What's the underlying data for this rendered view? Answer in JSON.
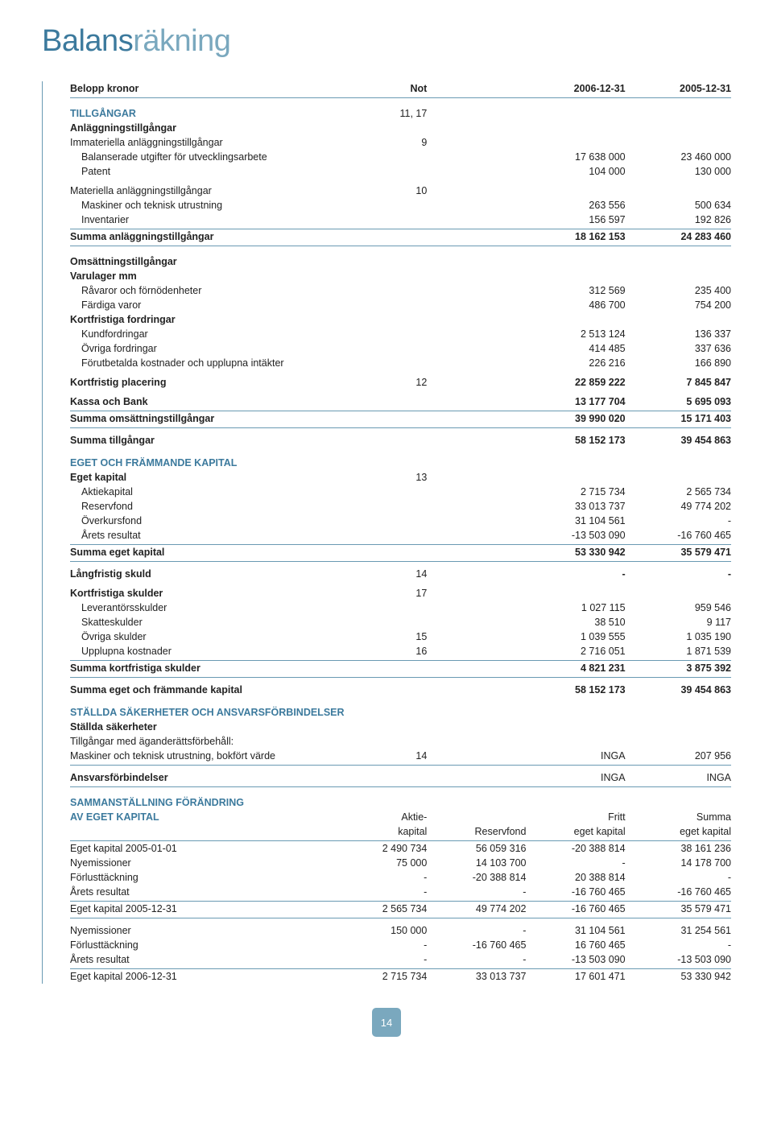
{
  "title_part1": "Balans",
  "title_part2": "räkning",
  "columns": {
    "label": "Belopp kronor",
    "not": "Not",
    "y1": "2006-12-31",
    "y2": "2005-12-31"
  },
  "tillgangar": {
    "heading": "TILLGÅNGAR",
    "not": "11, 17"
  },
  "anlaggn": {
    "heading": "Anläggningstillgångar",
    "rows": [
      {
        "label": "Immateriella anläggningstillgångar",
        "not": "9",
        "v1": "",
        "v2": ""
      },
      {
        "label": "Balanserade utgifter för utvecklingsarbete",
        "not": "",
        "v1": "17 638 000",
        "v2": "23 460 000"
      },
      {
        "label": "Patent",
        "not": "",
        "v1": "104 000",
        "v2": "130 000"
      }
    ],
    "mat_heading": "Materiella anläggningstillgångar",
    "mat_not": "10",
    "mat_rows": [
      {
        "label": "Maskiner och teknisk utrustning",
        "v1": "263 556",
        "v2": "500 634"
      },
      {
        "label": "Inventarier",
        "v1": "156 597",
        "v2": "192 826"
      }
    ],
    "sum": {
      "label": "Summa anläggningstillgångar",
      "v1": "18 162 153",
      "v2": "24 283 460"
    }
  },
  "oms": {
    "heading": "Omsättningstillgångar",
    "varulager": {
      "heading": "Varulager mm",
      "rows": [
        {
          "label": "Råvaror och förnödenheter",
          "v1": "312 569",
          "v2": "235 400"
        },
        {
          "label": "Färdiga varor",
          "v1": "486 700",
          "v2": "754 200"
        }
      ]
    },
    "kf": {
      "heading": "Kortfristiga fordringar",
      "rows": [
        {
          "label": "Kundfordringar",
          "v1": "2 513 124",
          "v2": "136 337"
        },
        {
          "label": "Övriga fordringar",
          "v1": "414 485",
          "v2": "337 636"
        },
        {
          "label": "Förutbetalda kostnader och upplupna intäkter",
          "v1": "226 216",
          "v2": "166 890"
        }
      ]
    },
    "kp": {
      "label": "Kortfristig placering",
      "not": "12",
      "v1": "22 859 222",
      "v2": "7 845 847"
    },
    "kb": {
      "label": "Kassa och Bank",
      "v1": "13 177 704",
      "v2": "5 695 093"
    },
    "sum": {
      "label": "Summa omsättningstillgångar",
      "v1": "39 990 020",
      "v2": "15 171 403"
    },
    "total": {
      "label": "Summa tillgångar",
      "v1": "58 152 173",
      "v2": "39 454 863"
    }
  },
  "eget_heading": "EGET OCH FRÄMMANDE KAPITAL",
  "ek": {
    "heading": "Eget kapital",
    "not": "13",
    "rows": [
      {
        "label": "Aktiekapital",
        "v1": "2 715 734",
        "v2": "2 565 734"
      },
      {
        "label": "Reservfond",
        "v1": "33 013 737",
        "v2": "49 774 202"
      },
      {
        "label": "Överkursfond",
        "v1": "31 104 561",
        "v2": "-"
      },
      {
        "label": "Årets resultat",
        "v1": "-13 503 090",
        "v2": "-16 760 465"
      }
    ],
    "sum": {
      "label": "Summa eget kapital",
      "v1": "53 330 942",
      "v2": "35 579 471"
    }
  },
  "lang": {
    "label": "Långfristig skuld",
    "not": "14",
    "v1": "-",
    "v2": "-"
  },
  "ks": {
    "heading": "Kortfristiga skulder",
    "not": "17",
    "rows": [
      {
        "label": "Leverantörsskulder",
        "not": "",
        "v1": "1 027 115",
        "v2": "959 546"
      },
      {
        "label": "Skatteskulder",
        "not": "",
        "v1": "38 510",
        "v2": "9 117"
      },
      {
        "label": "Övriga skulder",
        "not": "15",
        "v1": "1 039 555",
        "v2": "1 035 190"
      },
      {
        "label": "Upplupna kostnader",
        "not": "16",
        "v1": "2 716 051",
        "v2": "1 871 539"
      }
    ],
    "sum": {
      "label": "Summa kortfristiga skulder",
      "v1": "4 821 231",
      "v2": "3 875 392"
    }
  },
  "summa_ek": {
    "label": "Summa eget och främmande kapital",
    "v1": "58 152 173",
    "v2": "39 454 863"
  },
  "stallda": {
    "heading": "STÄLLDA SÄKERHETER OCH ANSVARSFÖRBINDELSER",
    "sub": "Ställda säkerheter",
    "line1": "Tillgångar med äganderättsförbehåll:",
    "row": {
      "label": "Maskiner och teknisk utrustning, bokfört värde",
      "not": "14",
      "v1": "INGA",
      "v2": "207 956"
    },
    "ansvar": {
      "label": "Ansvarsförbindelser",
      "v1": "INGA",
      "v2": "INGA"
    }
  },
  "eq": {
    "heading1": "SAMMANSTÄLLNING FÖRÄNDRING",
    "heading2": "AV EGET KAPITAL",
    "cols": {
      "c1a": "Aktie-",
      "c1b": "kapital",
      "c2": "Reservfond",
      "c3a": "Fritt",
      "c3b": "eget kapital",
      "c4a": "Summa",
      "c4b": "eget kapital"
    },
    "block1": [
      {
        "label": "Eget kapital 2005-01-01",
        "a": "2 490 734",
        "b": "56 059 316",
        "c": "-20 388 814",
        "d": "38 161 236"
      },
      {
        "label": "Nyemissioner",
        "a": "75 000",
        "b": "14 103 700",
        "c": "-",
        "d": "14 178 700"
      },
      {
        "label": "Förlusttäckning",
        "a": "-",
        "b": "-20 388 814",
        "c": "20 388 814",
        "d": "-"
      },
      {
        "label": "Årets resultat",
        "a": "-",
        "b": "-",
        "c": "-16 760 465",
        "d": "-16 760 465"
      }
    ],
    "subtotal1": {
      "label": "Eget kapital 2005-12-31",
      "a": "2 565 734",
      "b": "49 774 202",
      "c": "-16 760 465",
      "d": "35 579 471"
    },
    "block2": [
      {
        "label": "Nyemissioner",
        "a": "150 000",
        "b": "-",
        "c": "31 104 561",
        "d": "31 254 561"
      },
      {
        "label": "Förlusttäckning",
        "a": "-",
        "b": "-16 760 465",
        "c": "16 760 465",
        "d": "-"
      },
      {
        "label": "Årets resultat",
        "a": "-",
        "b": "-",
        "c": "-13 503 090",
        "d": "-13 503 090"
      }
    ],
    "total": {
      "label": "Eget kapital 2006-12-31",
      "a": "2 715 734",
      "b": "33 013 737",
      "c": "17 601 471",
      "d": "53 330 942"
    }
  },
  "page_number": "14"
}
